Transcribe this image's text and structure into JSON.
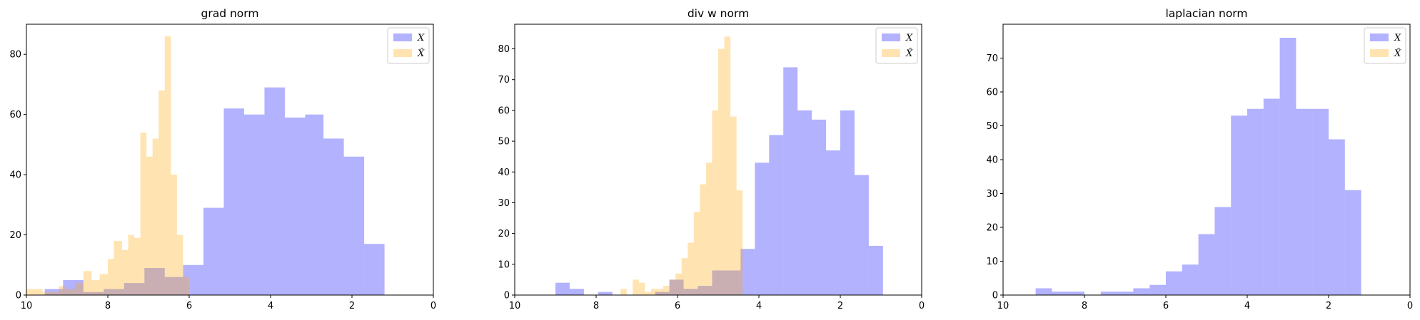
{
  "chart_data": [
    {
      "type": "histogram",
      "title": "grad norm",
      "xlim": [
        10,
        0
      ],
      "ylim": [
        0,
        90
      ],
      "xticks": [
        10,
        8,
        6,
        4,
        2,
        0
      ],
      "yticks": [
        0,
        20,
        40,
        60,
        80
      ],
      "legend": {
        "placement": "top-right",
        "entries": [
          "X",
          "X̂"
        ]
      },
      "series": [
        {
          "name": "X",
          "color": "#0000ff",
          "alpha": 0.3,
          "bins": [
            [
              9.55,
              9.1,
              2
            ],
            [
              9.1,
              8.6,
              5
            ],
            [
              8.6,
              8.1,
              1
            ],
            [
              8.1,
              7.6,
              2
            ],
            [
              7.6,
              7.1,
              4
            ],
            [
              7.1,
              6.6,
              9
            ],
            [
              6.6,
              6.15,
              6
            ],
            [
              6.15,
              5.65,
              10
            ],
            [
              5.65,
              5.15,
              29
            ],
            [
              5.15,
              4.65,
              62
            ],
            [
              4.65,
              4.15,
              60
            ],
            [
              4.15,
              3.65,
              69
            ],
            [
              3.65,
              3.15,
              59
            ],
            [
              3.15,
              2.7,
              60
            ],
            [
              2.7,
              2.2,
              52
            ],
            [
              2.2,
              1.7,
              46
            ],
            [
              1.7,
              1.2,
              17
            ]
          ]
        },
        {
          "name": "X̂",
          "color": "#ffa500",
          "alpha": 0.3,
          "bins": [
            [
              10.0,
              9.6,
              2
            ],
            [
              9.6,
              9.2,
              1
            ],
            [
              9.2,
              9.05,
              3
            ],
            [
              9.05,
              8.8,
              2
            ],
            [
              8.8,
              8.6,
              4
            ],
            [
              8.6,
              8.4,
              8
            ],
            [
              8.4,
              8.2,
              5
            ],
            [
              8.2,
              8.0,
              7
            ],
            [
              8.0,
              7.85,
              12
            ],
            [
              7.85,
              7.65,
              18
            ],
            [
              7.65,
              7.5,
              15
            ],
            [
              7.5,
              7.35,
              20
            ],
            [
              7.35,
              7.2,
              19
            ],
            [
              7.2,
              7.05,
              54
            ],
            [
              7.05,
              6.9,
              46
            ],
            [
              6.9,
              6.75,
              52
            ],
            [
              6.75,
              6.6,
              68
            ],
            [
              6.6,
              6.45,
              86
            ],
            [
              6.45,
              6.3,
              40
            ],
            [
              6.3,
              6.15,
              20
            ],
            [
              6.15,
              6.0,
              6
            ]
          ]
        }
      ]
    },
    {
      "type": "histogram",
      "title": "div w norm",
      "xlim": [
        10,
        0
      ],
      "ylim": [
        0,
        88
      ],
      "xticks": [
        10,
        8,
        6,
        4,
        2,
        0
      ],
      "yticks": [
        0,
        10,
        20,
        30,
        40,
        50,
        60,
        70,
        80
      ],
      "legend": {
        "placement": "top-right",
        "entries": [
          "X",
          "X̂"
        ]
      },
      "series": [
        {
          "name": "X",
          "color": "#0000ff",
          "alpha": 0.3,
          "bins": [
            [
              9.0,
              8.65,
              4
            ],
            [
              8.65,
              8.3,
              2
            ],
            [
              7.95,
              7.6,
              1
            ],
            [
              6.55,
              6.2,
              1
            ],
            [
              6.2,
              5.85,
              5
            ],
            [
              5.85,
              5.5,
              2
            ],
            [
              5.5,
              5.15,
              3
            ],
            [
              5.15,
              4.8,
              8
            ],
            [
              4.8,
              4.45,
              8
            ],
            [
              4.45,
              4.1,
              15
            ],
            [
              4.1,
              3.75,
              43
            ],
            [
              3.75,
              3.4,
              52
            ],
            [
              3.4,
              3.05,
              74
            ],
            [
              3.05,
              2.7,
              60
            ],
            [
              2.7,
              2.35,
              57
            ],
            [
              2.35,
              2.0,
              47
            ],
            [
              2.0,
              1.65,
              60
            ],
            [
              1.65,
              1.3,
              39
            ],
            [
              1.3,
              0.95,
              16
            ]
          ]
        },
        {
          "name": "X̂",
          "color": "#ffa500",
          "alpha": 0.3,
          "bins": [
            [
              7.4,
              7.25,
              2
            ],
            [
              7.1,
              6.95,
              5
            ],
            [
              6.95,
              6.8,
              4
            ],
            [
              6.8,
              6.65,
              1
            ],
            [
              6.65,
              6.5,
              2
            ],
            [
              6.5,
              6.35,
              2
            ],
            [
              6.35,
              6.2,
              3
            ],
            [
              6.2,
              6.05,
              5
            ],
            [
              6.05,
              5.9,
              7
            ],
            [
              5.9,
              5.75,
              12
            ],
            [
              5.75,
              5.6,
              17
            ],
            [
              5.6,
              5.45,
              27
            ],
            [
              5.45,
              5.3,
              36
            ],
            [
              5.3,
              5.15,
              43
            ],
            [
              5.15,
              5.0,
              60
            ],
            [
              5.0,
              4.85,
              80
            ],
            [
              4.85,
              4.7,
              84
            ],
            [
              4.7,
              4.55,
              58
            ],
            [
              4.55,
              4.4,
              34
            ]
          ]
        }
      ]
    },
    {
      "type": "histogram",
      "title": "laplacian norm",
      "xlim": [
        10,
        0
      ],
      "ylim": [
        0,
        80
      ],
      "xticks": [
        10,
        8,
        6,
        4,
        2,
        0
      ],
      "yticks": [
        0,
        10,
        20,
        30,
        40,
        50,
        60,
        70
      ],
      "legend": {
        "placement": "top-right",
        "entries": [
          "X",
          "X̂"
        ]
      },
      "series": [
        {
          "name": "X",
          "color": "#0000ff",
          "alpha": 0.3,
          "bins": [
            [
              9.2,
              8.8,
              2
            ],
            [
              8.8,
              8.4,
              1
            ],
            [
              8.4,
              8.0,
              1
            ],
            [
              7.6,
              7.2,
              1
            ],
            [
              7.2,
              6.8,
              1
            ],
            [
              6.8,
              6.4,
              2
            ],
            [
              6.4,
              6.0,
              3
            ],
            [
              6.0,
              5.6,
              7
            ],
            [
              5.6,
              5.2,
              9
            ],
            [
              5.2,
              4.8,
              18
            ],
            [
              4.8,
              4.4,
              26
            ],
            [
              4.4,
              4.0,
              53
            ],
            [
              4.0,
              3.6,
              55
            ],
            [
              3.6,
              3.2,
              58
            ],
            [
              3.2,
              2.8,
              76
            ],
            [
              2.8,
              2.4,
              55
            ],
            [
              2.4,
              2.0,
              55
            ],
            [
              2.0,
              1.6,
              46
            ],
            [
              1.6,
              1.2,
              31
            ]
          ]
        },
        {
          "name": "X̂",
          "color": "#ffa500",
          "alpha": 0.3,
          "bins": []
        }
      ]
    }
  ]
}
